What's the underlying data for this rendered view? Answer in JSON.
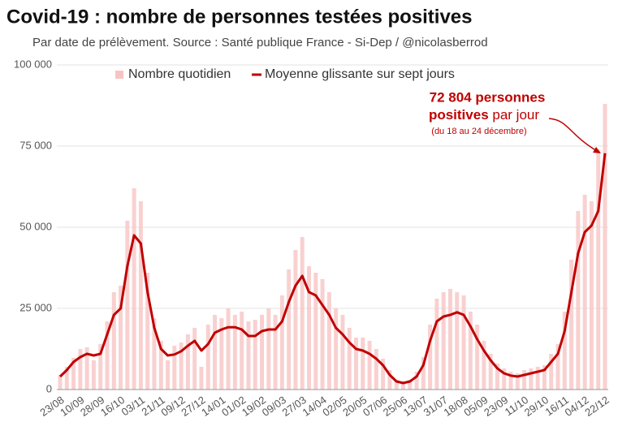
{
  "chart_data": {
    "type": "bar-line",
    "title": "Covid-19 : nombre de personnes testées positives",
    "subtitle": "Par date de prélèvement. Source : Santé publique France - Si-Dep / @nicolasberrod",
    "annotation": {
      "line1": "72 804 personnes",
      "line2_bold": "positives",
      "line2_normal": "par jour",
      "line3": "(du 18 au 24 décembre)"
    },
    "categories": [
      "23/08",
      null,
      null,
      "10/09",
      null,
      null,
      "28/09",
      null,
      null,
      "16/10",
      null,
      null,
      "03/11",
      null,
      null,
      "21/11",
      null,
      null,
      "09/12",
      null,
      null,
      "27/12",
      null,
      null,
      "14/01",
      null,
      null,
      "01/02",
      null,
      null,
      "19/02",
      null,
      null,
      "09/03",
      null,
      null,
      "27/03",
      null,
      null,
      "14/04",
      null,
      null,
      "02/05",
      null,
      null,
      "20/05",
      null,
      null,
      "07/06",
      null,
      null,
      "25/06",
      null,
      null,
      "13/07",
      null,
      null,
      "31/07",
      null,
      null,
      "18/08",
      null,
      null,
      "05/09",
      null,
      null,
      "23/09",
      null,
      null,
      "11/10",
      null,
      null,
      "29/10",
      null,
      null,
      "16/11",
      null,
      null,
      "04/12",
      null,
      null,
      "22/12"
    ],
    "series": [
      {
        "name": "Nombre quotidien",
        "kind": "bar",
        "color": "#f7c4c4",
        "values": [
          4500,
          7000,
          9800,
          12500,
          13000,
          9000,
          14000,
          21000,
          30000,
          32000,
          52000,
          62000,
          58000,
          36000,
          22000,
          15000,
          9000,
          13500,
          14500,
          17000,
          19000,
          7000,
          20000,
          23000,
          22000,
          25000,
          23000,
          24000,
          21000,
          21500,
          23000,
          25000,
          23000,
          29000,
          37000,
          43000,
          47000,
          38000,
          36000,
          34000,
          30000,
          25000,
          23000,
          19000,
          16000,
          16000,
          15000,
          12500,
          9500,
          6000,
          3000,
          2500,
          3000,
          5500,
          10000,
          20000,
          28000,
          30000,
          31000,
          30000,
          29000,
          24000,
          20000,
          15000,
          11000,
          8000,
          6500,
          5500,
          5000,
          6000,
          6500,
          7000,
          7500,
          11000,
          14000,
          24000,
          40000,
          55000,
          60000,
          58000,
          74000,
          88000
        ]
      },
      {
        "name": "Moyenne glissante sur sept jours",
        "kind": "line",
        "color": "#c00000",
        "values": [
          4000,
          6000,
          8500,
          10000,
          11000,
          10500,
          11000,
          17000,
          23000,
          25000,
          38000,
          47500,
          45000,
          30000,
          19000,
          12500,
          10500,
          10800,
          11800,
          13500,
          15000,
          12000,
          14000,
          17500,
          18500,
          19200,
          19200,
          18500,
          16500,
          16500,
          18000,
          18500,
          18500,
          21000,
          27000,
          32000,
          35000,
          30000,
          29000,
          26000,
          23000,
          19000,
          17000,
          14500,
          12500,
          12000,
          11000,
          9500,
          7500,
          4500,
          2500,
          2000,
          2500,
          4000,
          7500,
          15000,
          21000,
          22500,
          23000,
          23800,
          23000,
          19500,
          15500,
          12000,
          9000,
          6500,
          5000,
          4300,
          4000,
          4500,
          5000,
          5500,
          6000,
          8500,
          11000,
          18000,
          30000,
          42000,
          48500,
          50500,
          55000,
          72804
        ]
      }
    ],
    "ylim": [
      0,
      100000
    ],
    "yticks": [
      0,
      {
        "value": 25000,
        "label": "25 000"
      },
      {
        "value": 50000,
        "label": "50 000"
      },
      {
        "value": 75000,
        "label": "75 000"
      },
      {
        "value": 100000,
        "label": "100 000"
      }
    ],
    "grid": true,
    "legend": "top"
  }
}
